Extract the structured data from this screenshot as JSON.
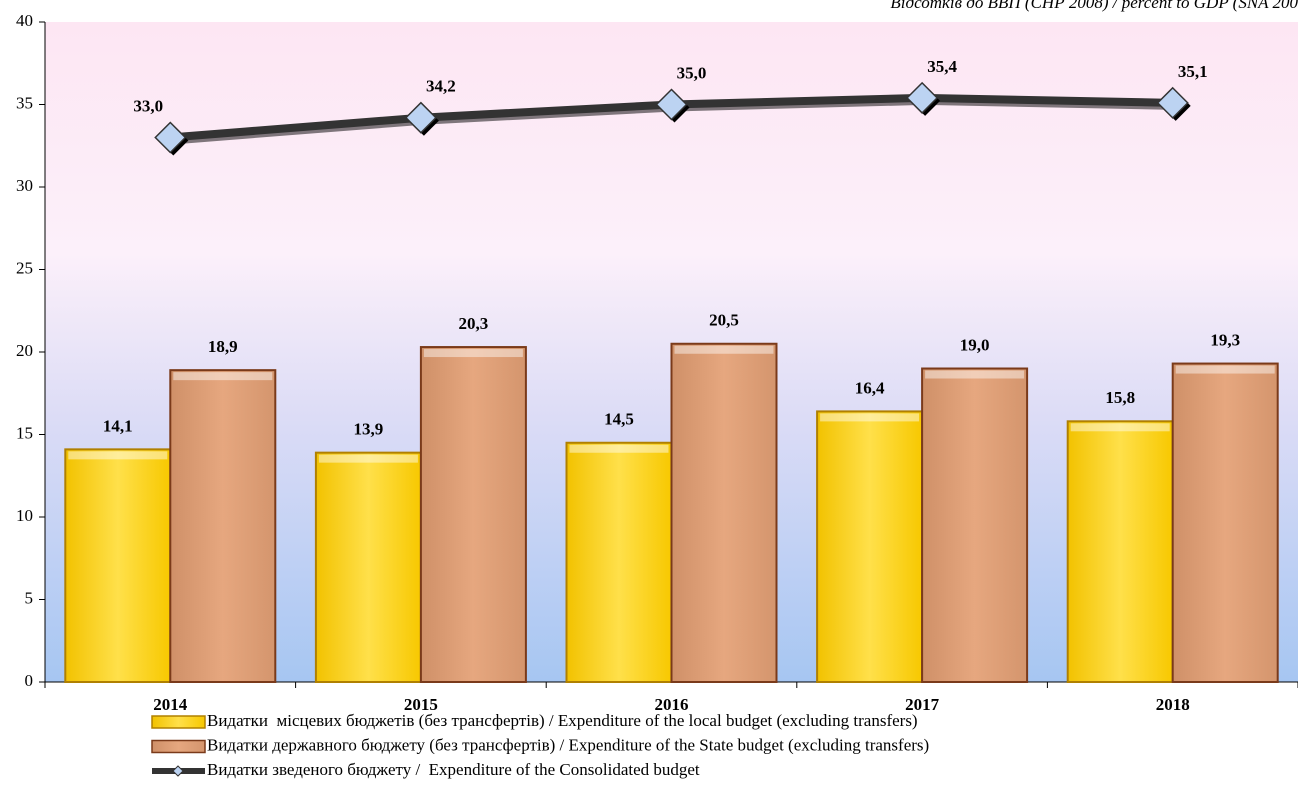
{
  "chart_data": {
    "type": "bar",
    "subtitle": "Відсотків до ВВП (СНР 2008) / percent to GDP (SNA 200",
    "categories": [
      "2014",
      "2015",
      "2016",
      "2017",
      "2018"
    ],
    "series": [
      {
        "name": "Видатки  місцевих бюджетів (без трансфертів) / Expenditure of the local budget (excluding transfers)",
        "type": "bar",
        "color": "#ffd21f",
        "values": [
          14.1,
          13.9,
          14.5,
          16.4,
          15.8
        ],
        "value_labels": [
          "14,1",
          "13,9",
          "14,5",
          "16,4",
          "15,8"
        ]
      },
      {
        "name": "Видатки державного бюджету (без трансфертів) / Expenditure of the State budget (excluding transfers)",
        "type": "bar",
        "color": "#dd9c74",
        "values": [
          18.9,
          20.3,
          20.5,
          19.0,
          19.3
        ],
        "value_labels": [
          "18,9",
          "20,3",
          "20,5",
          "19,0",
          "19,3"
        ]
      },
      {
        "name": "Видатки зведеного бюджету /  Expenditure of the Consolidated budget",
        "type": "line",
        "color": "#333333",
        "values": [
          33.0,
          34.2,
          35.0,
          35.4,
          35.1
        ],
        "value_labels": [
          "33,0",
          "34,2",
          "35,0",
          "35,4",
          "35,1"
        ]
      }
    ],
    "ylim": [
      0,
      40
    ],
    "yticks": [
      0,
      5,
      10,
      15,
      20,
      25,
      30,
      35,
      40
    ],
    "legend": "bottom"
  }
}
